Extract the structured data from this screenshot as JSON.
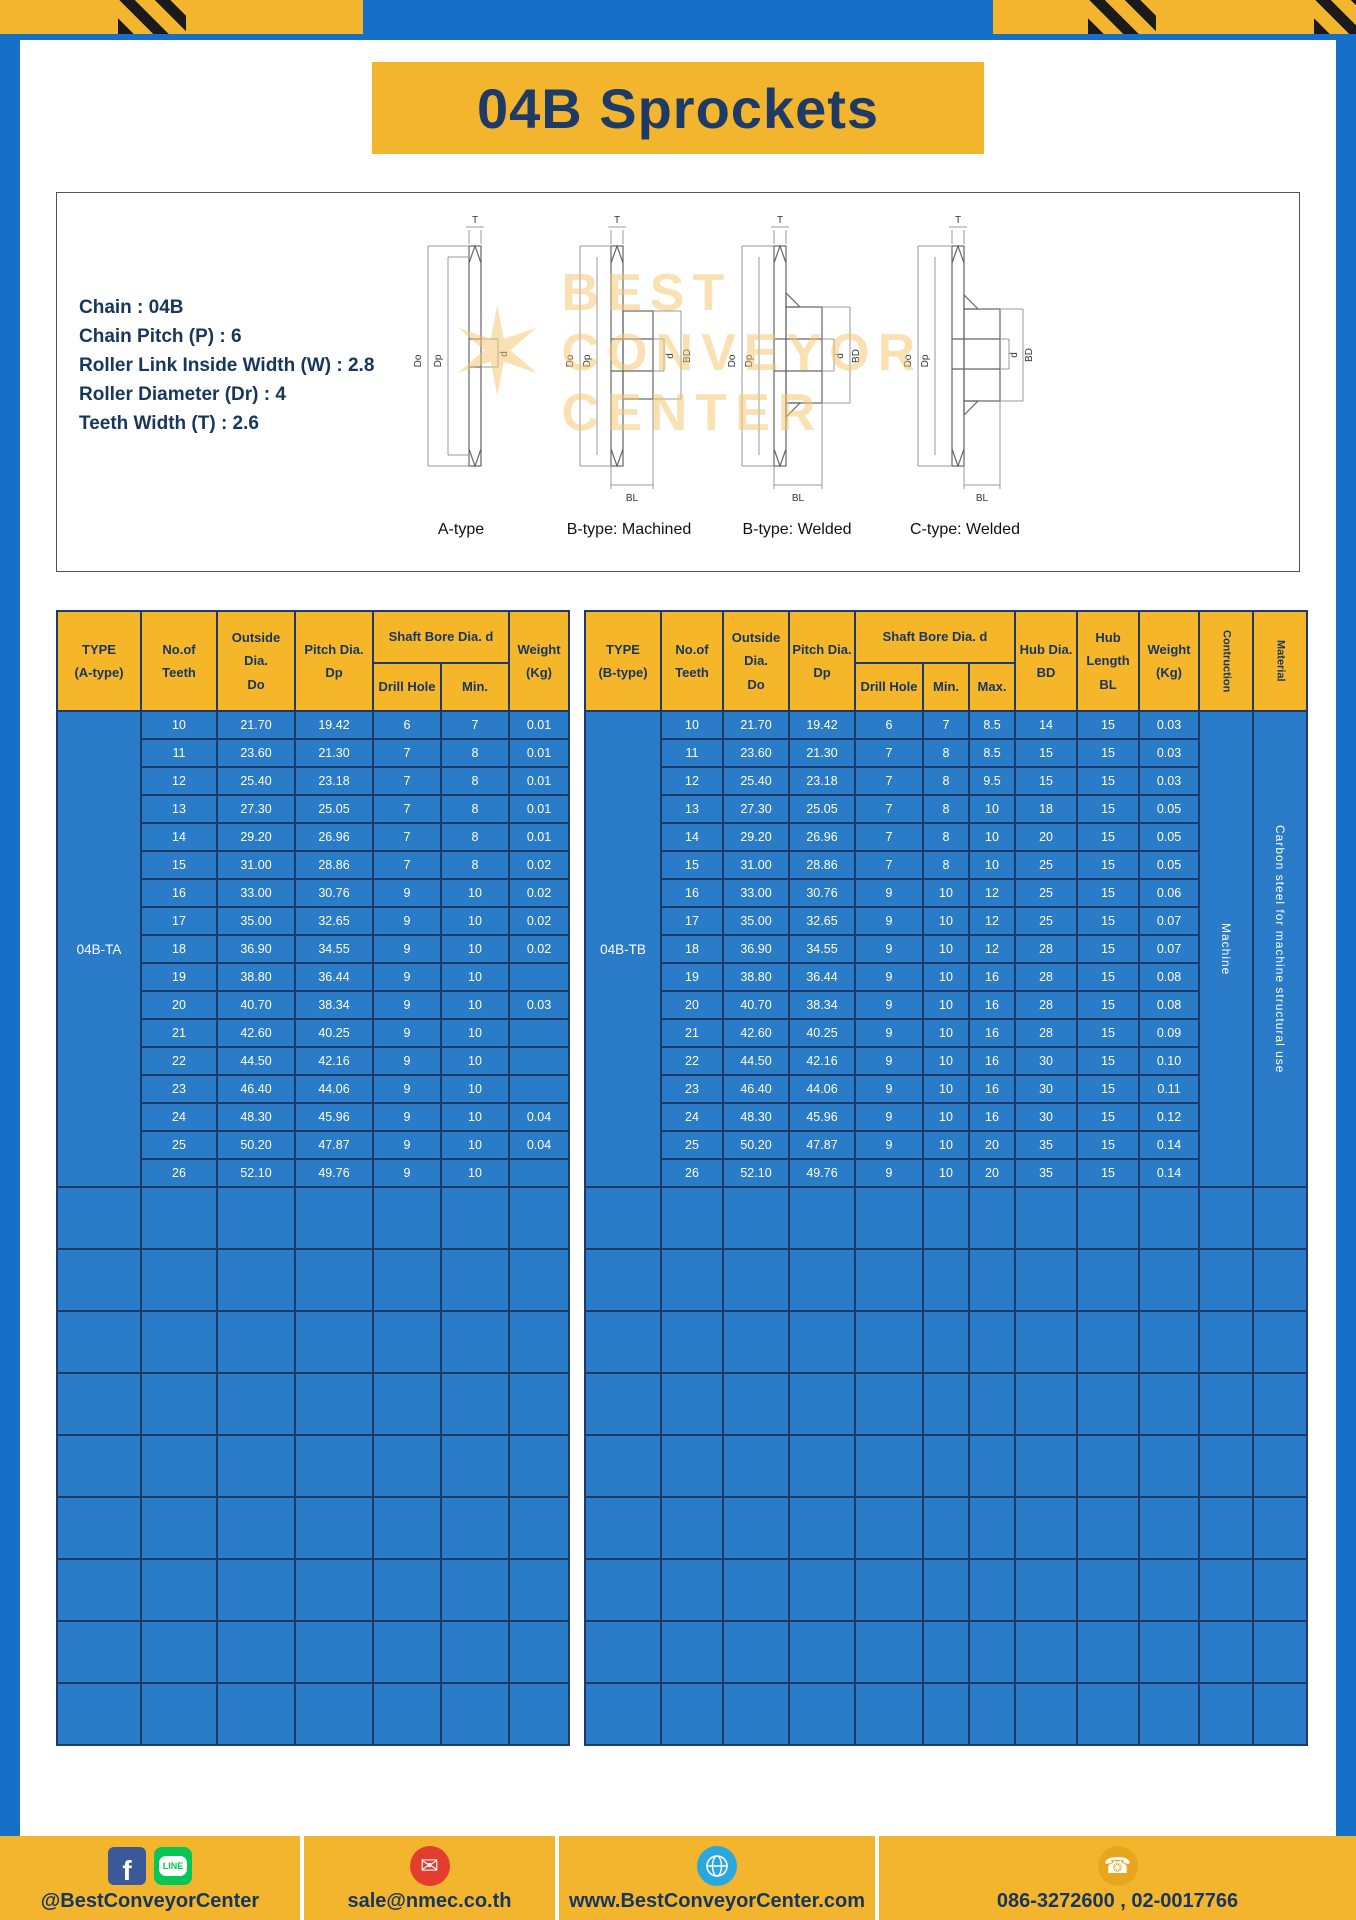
{
  "title": "04B Sprockets",
  "specs": {
    "lines": [
      "Chain : 04B",
      "Chain Pitch (P) : 6",
      "Roller Link Inside Width (W) : 2.8",
      "Roller Diameter (Dr) : 4",
      "Teeth Width (T) : 2.6"
    ]
  },
  "watermark": {
    "lines": [
      "BEST",
      "CONVEYOR",
      "CENTER"
    ]
  },
  "drawings": {
    "captions": [
      "A-type",
      "B-type: Machined",
      "B-type: Welded",
      "C-type: Welded"
    ],
    "dim_labels": {
      "t": "T",
      "do": "Do",
      "dp": "Dp",
      "d": "d",
      "bd": "BD",
      "bl": "BL"
    }
  },
  "empty_rows": 9,
  "table_a": {
    "type_label": "04B-TA",
    "headers": {
      "type": "TYPE\n(A-type)",
      "teeth": "No.of\nTeeth",
      "outside": "Outside\nDia.\nDo",
      "pitch": "Pitch Dia.\nDp",
      "shaft_bore": "Shaft Bore Dia. d",
      "drill_hole": "Drill Hole",
      "min": "Min.",
      "weight": "Weight\n(Kg)"
    },
    "rows": [
      [
        "10",
        "21.70",
        "19.42",
        "6",
        "7",
        "0.01"
      ],
      [
        "11",
        "23.60",
        "21.30",
        "7",
        "8",
        "0.01"
      ],
      [
        "12",
        "25.40",
        "23.18",
        "7",
        "8",
        "0.01"
      ],
      [
        "13",
        "27.30",
        "25.05",
        "7",
        "8",
        "0.01"
      ],
      [
        "14",
        "29.20",
        "26.96",
        "7",
        "8",
        "0.01"
      ],
      [
        "15",
        "31.00",
        "28.86",
        "7",
        "8",
        "0.02"
      ],
      [
        "16",
        "33.00",
        "30.76",
        "9",
        "10",
        "0.02"
      ],
      [
        "17",
        "35.00",
        "32.65",
        "9",
        "10",
        "0.02"
      ],
      [
        "18",
        "36.90",
        "34.55",
        "9",
        "10",
        "0.02"
      ],
      [
        "19",
        "38.80",
        "36.44",
        "9",
        "10",
        ""
      ],
      [
        "20",
        "40.70",
        "38.34",
        "9",
        "10",
        "0.03"
      ],
      [
        "21",
        "42.60",
        "40.25",
        "9",
        "10",
        ""
      ],
      [
        "22",
        "44.50",
        "42.16",
        "9",
        "10",
        ""
      ],
      [
        "23",
        "46.40",
        "44.06",
        "9",
        "10",
        ""
      ],
      [
        "24",
        "48.30",
        "45.96",
        "9",
        "10",
        "0.04"
      ],
      [
        "25",
        "50.20",
        "47.87",
        "9",
        "10",
        "0.04"
      ],
      [
        "26",
        "52.10",
        "49.76",
        "9",
        "10",
        ""
      ]
    ]
  },
  "table_b": {
    "type_label": "04B-TB",
    "construction": "Machine",
    "material": "Carbon steel for machine structural use",
    "headers": {
      "type": "TYPE\n(B-type)",
      "teeth": "No.of\nTeeth",
      "outside": "Outside\nDia.\nDo",
      "pitch": "Pitch Dia.\nDp",
      "shaft_bore": "Shaft Bore Dia. d",
      "drill_hole": "Drill Hole",
      "min": "Min.",
      "max": "Max.",
      "hub_dia": "Hub Dia.\nBD",
      "hub_length": "Hub\nLength\nBL",
      "weight": "Weight\n(Kg)",
      "construction": "Contruction",
      "material": "Material"
    },
    "rows": [
      [
        "10",
        "21.70",
        "19.42",
        "6",
        "7",
        "8.5",
        "14",
        "15",
        "0.03"
      ],
      [
        "11",
        "23.60",
        "21.30",
        "7",
        "8",
        "8.5",
        "15",
        "15",
        "0.03"
      ],
      [
        "12",
        "25.40",
        "23.18",
        "7",
        "8",
        "9.5",
        "15",
        "15",
        "0.03"
      ],
      [
        "13",
        "27.30",
        "25.05",
        "7",
        "8",
        "10",
        "18",
        "15",
        "0.05"
      ],
      [
        "14",
        "29.20",
        "26.96",
        "7",
        "8",
        "10",
        "20",
        "15",
        "0.05"
      ],
      [
        "15",
        "31.00",
        "28.86",
        "7",
        "8",
        "10",
        "25",
        "15",
        "0.05"
      ],
      [
        "16",
        "33.00",
        "30.76",
        "9",
        "10",
        "12",
        "25",
        "15",
        "0.06"
      ],
      [
        "17",
        "35.00",
        "32.65",
        "9",
        "10",
        "12",
        "25",
        "15",
        "0.07"
      ],
      [
        "18",
        "36.90",
        "34.55",
        "9",
        "10",
        "12",
        "28",
        "15",
        "0.07"
      ],
      [
        "19",
        "38.80",
        "36.44",
        "9",
        "10",
        "16",
        "28",
        "15",
        "0.08"
      ],
      [
        "20",
        "40.70",
        "38.34",
        "9",
        "10",
        "16",
        "28",
        "15",
        "0.08"
      ],
      [
        "21",
        "42.60",
        "40.25",
        "9",
        "10",
        "16",
        "28",
        "15",
        "0.09"
      ],
      [
        "22",
        "44.50",
        "42.16",
        "9",
        "10",
        "16",
        "30",
        "15",
        "0.10"
      ],
      [
        "23",
        "46.40",
        "44.06",
        "9",
        "10",
        "16",
        "30",
        "15",
        "0.11"
      ],
      [
        "24",
        "48.30",
        "45.96",
        "9",
        "10",
        "16",
        "30",
        "15",
        "0.12"
      ],
      [
        "25",
        "50.20",
        "47.87",
        "9",
        "10",
        "20",
        "35",
        "15",
        "0.14"
      ],
      [
        "26",
        "52.10",
        "49.76",
        "9",
        "10",
        "20",
        "35",
        "15",
        "0.14"
      ]
    ]
  },
  "footer": {
    "social_handle": "@BestConveyorCenter",
    "email": "sale@nmec.co.th",
    "website": "www.BestConveyorCenter.com",
    "phones": "086-3272600 , 02-0017766",
    "facebook_letter": "f",
    "line_label": "LINE"
  }
}
